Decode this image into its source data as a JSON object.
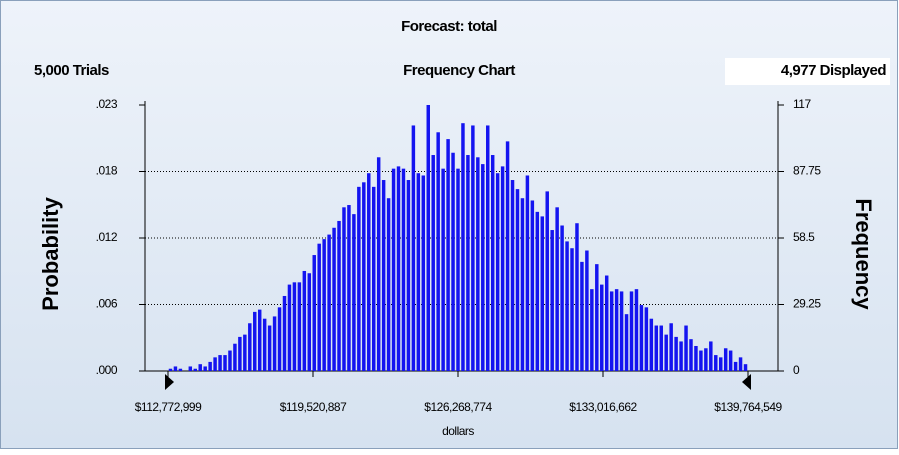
{
  "chart_data": {
    "type": "histogram",
    "title": "Forecast: total",
    "trials": "5,000 Trials",
    "subtitle": "Frequency Chart",
    "displayed": "4,977 Displayed",
    "xlabel": "dollars",
    "ylabel": "Probability",
    "y2label": "Frequency",
    "color": "#1414f0",
    "grid": true,
    "xlim": [
      112772999,
      139764549
    ],
    "xticks": [
      {
        "value": 112772999,
        "label": "$112,772,999"
      },
      {
        "value": 119520887,
        "label": "$119,520,887"
      },
      {
        "value": 126268774,
        "label": "$126,268,774"
      },
      {
        "value": 133016662,
        "label": "$133,016,662"
      },
      {
        "value": 139764549,
        "label": "$139,764,549"
      }
    ],
    "ylim": [
      0,
      0.023508
    ],
    "yticks": [
      {
        "value": 0,
        "label": ".000"
      },
      {
        "value": 0.005877,
        "label": ".006"
      },
      {
        "value": 0.011754,
        "label": ".012"
      },
      {
        "value": 0.017631,
        "label": ".018"
      },
      {
        "value": 0.023508,
        "label": ".023"
      }
    ],
    "y2lim": [
      0,
      117
    ],
    "y2ticks": [
      0,
      29.25,
      58.5,
      87.75,
      117
    ],
    "series": [
      {
        "name": "Frequency",
        "axis": "y2",
        "values": [
          1,
          2,
          1,
          0,
          2,
          1,
          3,
          2,
          4,
          6,
          7,
          7,
          9,
          12,
          15,
          16,
          21,
          26,
          27,
          23,
          20,
          24,
          28,
          33,
          38,
          39,
          39,
          44,
          43,
          51,
          56,
          58,
          60,
          63,
          66,
          72,
          73,
          69,
          81,
          83,
          87,
          81,
          94,
          84,
          76,
          89,
          90,
          89,
          84,
          108,
          87,
          86,
          117,
          95,
          105,
          89,
          102,
          96,
          89,
          109,
          95,
          108,
          94,
          91,
          108,
          95,
          87,
          90,
          101,
          84,
          80,
          76,
          86,
          75,
          70,
          68,
          79,
          62,
          72,
          64,
          57,
          54,
          65,
          48,
          53,
          36,
          47,
          38,
          42,
          35,
          36,
          35,
          25,
          35,
          36,
          29,
          28,
          23,
          20,
          20,
          16,
          21,
          15,
          13,
          20,
          14,
          11,
          9,
          10,
          13,
          7,
          6,
          10,
          9,
          4,
          6,
          3
        ]
      }
    ]
  }
}
